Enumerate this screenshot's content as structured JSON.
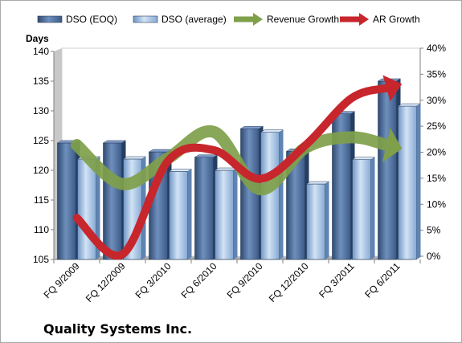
{
  "chart_data": {
    "type": "bar",
    "title": "",
    "footer_title": "Quality Systems Inc.",
    "y_left_label": "Days",
    "y_left_range": [
      105,
      140
    ],
    "y_left_ticks": [
      "105",
      "110",
      "115",
      "120",
      "125",
      "130",
      "135",
      "140"
    ],
    "y_right_range": [
      0,
      0.4
    ],
    "y_right_ticks": [
      "0%",
      "5%",
      "10%",
      "15%",
      "20%",
      "25%",
      "30%",
      "35%",
      "40%"
    ],
    "grid": false,
    "legend_position": "top",
    "categories": [
      "FQ 9/2009",
      "FQ 12/2009",
      "FQ 3/2010",
      "FQ 6/2010",
      "FQ 9/2010",
      "FQ 12/2010",
      "FQ 3/2011",
      "FQ 6/2011"
    ],
    "bar_series": [
      {
        "name": "DSO (EOQ)",
        "axis": "left",
        "color": "#4f6d9a",
        "values": [
          124.6,
          124.6,
          123.1,
          122.2,
          127.0,
          123.2,
          129.5,
          135.0
        ]
      },
      {
        "name": "DSO (average)",
        "axis": "left",
        "color": "#a6c3e3",
        "values": [
          121.9,
          121.9,
          119.8,
          120.0,
          126.4,
          117.7,
          121.8,
          130.8
        ]
      }
    ],
    "line_series": [
      {
        "name": "Revenue Growth",
        "axis": "right",
        "color": "#7f9f4a",
        "unit": "percent",
        "values": [
          22,
          14.5,
          19.5,
          24.5,
          13.5,
          21.5,
          23.5,
          21.5
        ]
      },
      {
        "name": "AR Growth",
        "axis": "right",
        "color": "#c7262c",
        "unit": "percent",
        "values": [
          8,
          1,
          19,
          21,
          15.5,
          22,
          31,
          33.5
        ]
      }
    ]
  }
}
